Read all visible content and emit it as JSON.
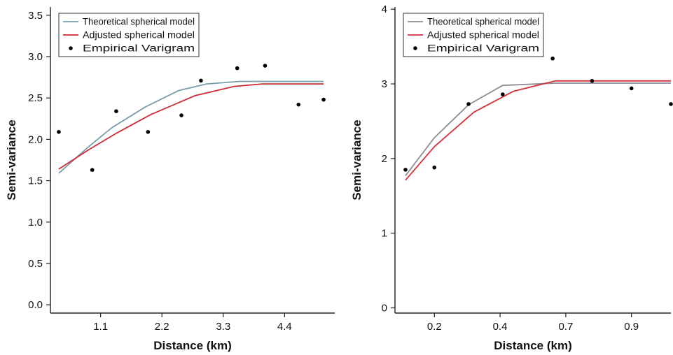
{
  "chart_data": [
    {
      "type": "line",
      "xlabel": "Distance (km)",
      "ylabel": "Semi-variance",
      "xlim": [
        0.2,
        5.3
      ],
      "ylim": [
        -0.1,
        3.6
      ],
      "xticks": [
        1.1,
        2.2,
        3.3,
        4.4
      ],
      "xtick_labels": [
        "1.1",
        "2.2",
        "3.3",
        "4.4"
      ],
      "yticks": [
        0.0,
        0.5,
        1.0,
        1.5,
        2.0,
        2.5,
        3.0,
        3.5
      ],
      "ytick_labels": [
        "0.0",
        "0.5",
        "1.0",
        "1.5",
        "2.0",
        "2.5",
        "3.0",
        "3.5"
      ],
      "grid": false,
      "legend": "top-left",
      "series": [
        {
          "name": "Theoretical spherical model",
          "kind": "line",
          "color": "#7a9cab",
          "x": [
            0.35,
            0.9,
            1.3,
            1.9,
            2.5,
            3.0,
            3.6,
            5.1
          ],
          "y": [
            1.59,
            1.92,
            2.14,
            2.39,
            2.59,
            2.67,
            2.7,
            2.7
          ]
        },
        {
          "name": "Adjusted spherical model",
          "kind": "line",
          "color": "#cc2a36",
          "x": [
            0.35,
            0.9,
            1.4,
            2.0,
            2.8,
            3.5,
            4.0,
            5.1
          ],
          "y": [
            1.64,
            1.88,
            2.08,
            2.3,
            2.53,
            2.64,
            2.67,
            2.67
          ]
        },
        {
          "name": "Empirical Varigram",
          "kind": "scatter",
          "color": "#000000",
          "x": [
            0.35,
            0.95,
            1.38,
            1.95,
            2.55,
            2.9,
            3.55,
            4.05,
            4.65,
            5.1
          ],
          "y": [
            2.09,
            1.63,
            2.34,
            2.09,
            2.29,
            2.71,
            2.86,
            2.89,
            2.42,
            2.48
          ]
        }
      ]
    },
    {
      "type": "line",
      "xlabel": "Distance (km)",
      "ylabel": "Semi-variance",
      "xlim": [
        0.05,
        1.1
      ],
      "ylim": [
        -0.07,
        4.03
      ],
      "xticks": [
        0.2,
        0.45,
        0.7,
        0.95
      ],
      "xtick_labels": [
        "0.2",
        "0.4",
        "0.7",
        "0.9"
      ],
      "yticks": [
        0,
        1,
        2,
        3,
        4
      ],
      "ytick_labels": [
        "0",
        "1",
        "2",
        "3",
        "4"
      ],
      "grid": false,
      "legend": "top-left",
      "series": [
        {
          "name": "Theoretical spherical model",
          "kind": "line",
          "color": "#8c8c96",
          "x": [
            0.09,
            0.2,
            0.33,
            0.46,
            0.66,
            1.1
          ],
          "y": [
            1.77,
            2.28,
            2.72,
            2.98,
            3.01,
            3.01
          ]
        },
        {
          "name": "Adjusted spherical model",
          "kind": "line",
          "color": "#d4303c",
          "x": [
            0.09,
            0.2,
            0.35,
            0.5,
            0.66,
            1.1
          ],
          "y": [
            1.71,
            2.16,
            2.62,
            2.9,
            3.04,
            3.04
          ]
        },
        {
          "name": "Empirical Varigram",
          "kind": "scatter",
          "color": "#000000",
          "x": [
            0.09,
            0.2,
            0.33,
            0.46,
            0.65,
            0.8,
            0.95,
            1.1
          ],
          "y": [
            1.85,
            1.88,
            2.73,
            2.86,
            3.34,
            3.04,
            2.94,
            2.73
          ]
        }
      ]
    }
  ]
}
